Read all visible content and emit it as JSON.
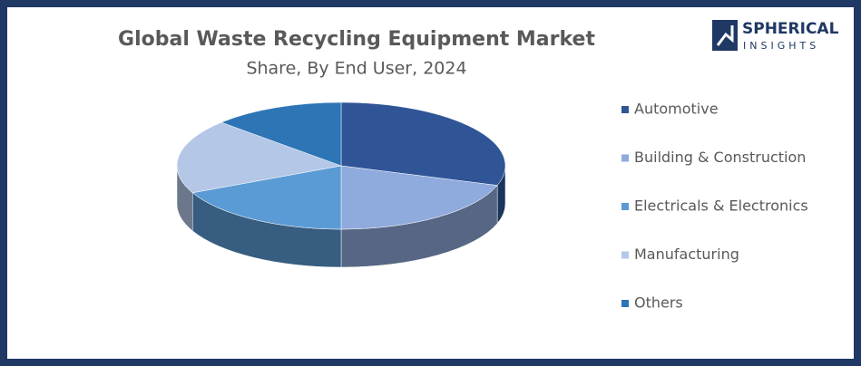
{
  "logo": {
    "line1": "SPHERICAL",
    "line2": "INSIGHTS"
  },
  "chart_data": {
    "type": "pie3d",
    "title": "Global Waste Recycling Equipment Market",
    "subtitle": "Share, By End User, 2024",
    "categories": [
      "Automotive",
      "Building & Construction",
      "Electricals & Electronics",
      "Manufacturing",
      "Others"
    ],
    "values": [
      30,
      20,
      18,
      19,
      13
    ],
    "colors": [
      "#2f5597",
      "#8faadc",
      "#5b9bd5",
      "#b4c7e7",
      "#2e75b6"
    ],
    "legend": "right"
  }
}
